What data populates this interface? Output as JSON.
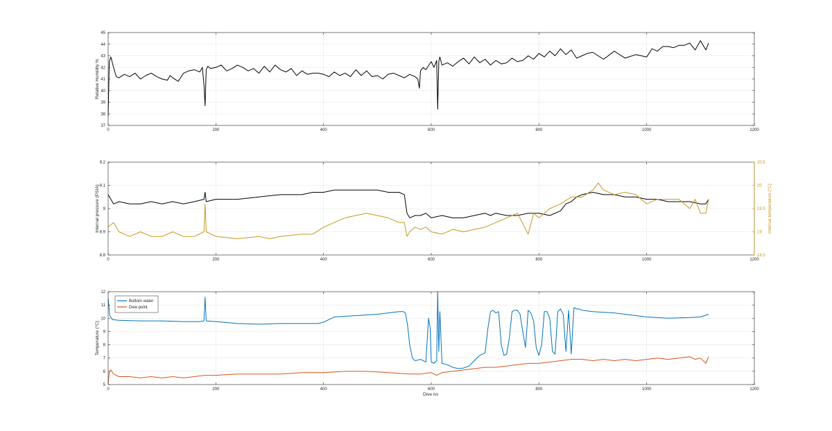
{
  "figure": {
    "xlabel": "Dive no"
  },
  "chart_data": [
    {
      "type": "line",
      "xlabel": "",
      "ylabel": "Relative Humidity %",
      "xlim": [
        0,
        1200
      ],
      "ylim": [
        37,
        45
      ],
      "xticks": [
        0,
        200,
        400,
        600,
        800,
        1000,
        1200
      ],
      "yticks": [
        37,
        38,
        39,
        40,
        41,
        42,
        43,
        44,
        45
      ],
      "grid": true,
      "series": [
        {
          "color": "#000000",
          "x": [
            0,
            2,
            5,
            10,
            15,
            20,
            30,
            40,
            50,
            60,
            70,
            80,
            90,
            100,
            110,
            115,
            120,
            130,
            140,
            150,
            160,
            170,
            175,
            178,
            180,
            182,
            185,
            190,
            200,
            210,
            220,
            230,
            240,
            250,
            260,
            270,
            280,
            290,
            300,
            310,
            320,
            330,
            340,
            350,
            360,
            370,
            380,
            390,
            400,
            410,
            420,
            430,
            440,
            450,
            460,
            470,
            480,
            490,
            500,
            510,
            520,
            530,
            540,
            550,
            560,
            570,
            575,
            578,
            580,
            585,
            590,
            600,
            605,
            610,
            612,
            614,
            616,
            620,
            630,
            640,
            650,
            660,
            670,
            680,
            690,
            700,
            710,
            720,
            730,
            740,
            750,
            760,
            770,
            780,
            790,
            800,
            810,
            820,
            830,
            840,
            850,
            860,
            870,
            880,
            890,
            900,
            920,
            940,
            960,
            980,
            1000,
            1010,
            1020,
            1030,
            1040,
            1050,
            1060,
            1070,
            1080,
            1090,
            1100,
            1110,
            1115
          ],
          "y": [
            37.8,
            42.5,
            42.9,
            42.0,
            41.2,
            41.1,
            41.4,
            41.2,
            41.5,
            41.0,
            41.3,
            41.5,
            41.2,
            41.0,
            40.9,
            41.3,
            41.1,
            40.8,
            41.5,
            41.7,
            41.8,
            41.6,
            42.0,
            40.5,
            38.7,
            41.8,
            42.1,
            41.9,
            42.0,
            42.2,
            41.7,
            41.9,
            42.2,
            42.0,
            41.7,
            41.9,
            41.5,
            42.1,
            41.6,
            42.2,
            41.8,
            41.6,
            41.9,
            41.3,
            41.7,
            41.4,
            41.5,
            41.5,
            41.4,
            41.2,
            41.6,
            41.3,
            41.5,
            41.2,
            41.8,
            41.3,
            41.7,
            41.2,
            41.3,
            41.0,
            41.4,
            41.5,
            41.3,
            41.1,
            41.4,
            41.2,
            41.0,
            40.2,
            41.7,
            42.0,
            41.8,
            42.5,
            42.0,
            42.6,
            38.4,
            42.5,
            42.9,
            42.2,
            42.4,
            42.1,
            42.5,
            42.8,
            42.3,
            42.9,
            42.4,
            42.7,
            42.2,
            42.6,
            42.3,
            42.4,
            42.8,
            42.5,
            42.6,
            43.0,
            42.7,
            43.2,
            42.9,
            43.4,
            43.0,
            43.6,
            43.1,
            43.5,
            42.8,
            43.0,
            43.2,
            43.3,
            42.7,
            43.4,
            42.8,
            43.1,
            42.9,
            43.6,
            43.4,
            43.8,
            43.8,
            43.7,
            43.9,
            43.9,
            44.1,
            43.5,
            44.3,
            43.5,
            44.1
          ]
        }
      ]
    },
    {
      "type": "line",
      "xlabel": "",
      "ylabel": "Internal pressure (PSIA)",
      "ylabel_right": "Internal temperature (°C)",
      "xlim": [
        0,
        1200
      ],
      "ylim": [
        8.8,
        9.2
      ],
      "ylim_right": [
        18.5,
        20.5
      ],
      "xticks": [
        0,
        200,
        400,
        600,
        800,
        1000,
        1200
      ],
      "yticks": [
        8.8,
        8.9,
        9,
        9.1,
        9.2
      ],
      "yticks_right": [
        18.5,
        19,
        19.5,
        20,
        20.5
      ],
      "grid": true,
      "series": [
        {
          "color": "#000000",
          "axis": "left",
          "x": [
            0,
            5,
            10,
            20,
            40,
            60,
            80,
            100,
            120,
            140,
            160,
            178,
            180,
            182,
            200,
            240,
            280,
            320,
            360,
            380,
            400,
            420,
            440,
            460,
            480,
            500,
            520,
            540,
            550,
            555,
            560,
            570,
            580,
            590,
            600,
            620,
            640,
            660,
            680,
            700,
            710,
            720,
            740,
            760,
            780,
            800,
            820,
            840,
            850,
            860,
            870,
            880,
            900,
            920,
            940,
            960,
            980,
            1000,
            1020,
            1040,
            1060,
            1080,
            1100,
            1110,
            1115
          ],
          "y": [
            9.06,
            9.04,
            9.02,
            9.03,
            9.02,
            9.02,
            9.03,
            9.02,
            9.03,
            9.02,
            9.03,
            9.04,
            9.07,
            9.03,
            9.04,
            9.04,
            9.05,
            9.06,
            9.06,
            9.07,
            9.07,
            9.08,
            9.08,
            9.08,
            9.08,
            9.08,
            9.07,
            9.07,
            9.06,
            8.98,
            8.96,
            8.97,
            8.97,
            8.98,
            8.96,
            8.97,
            8.96,
            8.96,
            8.97,
            8.98,
            8.97,
            8.98,
            8.97,
            8.97,
            8.98,
            8.98,
            8.97,
            8.99,
            9.02,
            9.03,
            9.05,
            9.06,
            9.07,
            9.06,
            9.06,
            9.05,
            9.05,
            9.04,
            9.04,
            9.03,
            9.03,
            9.03,
            9.02,
            9.02,
            9.04
          ]
        },
        {
          "color": "#c8961e",
          "axis": "right",
          "x": [
            0,
            10,
            20,
            40,
            60,
            80,
            100,
            120,
            140,
            160,
            178,
            180,
            182,
            200,
            240,
            280,
            300,
            320,
            360,
            380,
            400,
            420,
            440,
            460,
            480,
            500,
            520,
            540,
            550,
            555,
            560,
            570,
            580,
            590,
            600,
            620,
            640,
            660,
            680,
            700,
            720,
            740,
            760,
            780,
            790,
            800,
            820,
            840,
            860,
            880,
            900,
            910,
            920,
            940,
            960,
            980,
            1000,
            1020,
            1040,
            1060,
            1080,
            1090,
            1100,
            1110,
            1115
          ],
          "y": [
            19.1,
            19.2,
            19.0,
            18.9,
            19.0,
            18.9,
            18.9,
            19.0,
            18.9,
            18.9,
            19.0,
            19.6,
            19.0,
            18.9,
            18.85,
            18.9,
            18.85,
            18.9,
            18.95,
            18.95,
            19.1,
            19.2,
            19.3,
            19.35,
            19.4,
            19.35,
            19.3,
            19.2,
            19.2,
            18.9,
            19.0,
            19.1,
            19.05,
            19.1,
            19.0,
            18.95,
            19.05,
            19.0,
            19.05,
            19.1,
            19.2,
            19.3,
            19.4,
            18.95,
            19.4,
            19.3,
            19.5,
            19.6,
            19.75,
            19.75,
            19.9,
            20.05,
            19.9,
            19.8,
            19.85,
            19.8,
            19.6,
            19.7,
            19.7,
            19.7,
            19.5,
            19.7,
            19.4,
            19.4,
            19.7
          ]
        }
      ]
    },
    {
      "type": "line",
      "xlabel": "Dive no",
      "ylabel": "Temperature (°C)",
      "xlim": [
        0,
        1200
      ],
      "ylim": [
        5,
        12
      ],
      "xticks": [
        0,
        200,
        400,
        600,
        800,
        1000,
        1200
      ],
      "yticks": [
        5,
        6,
        7,
        8,
        9,
        10,
        11,
        12
      ],
      "grid": true,
      "legend": "top-left",
      "series": [
        {
          "name": "Bottom water",
          "color": "#0072bd",
          "x": [
            0,
            3,
            8,
            20,
            60,
            100,
            140,
            170,
            178,
            180,
            182,
            200,
            240,
            280,
            320,
            360,
            390,
            400,
            410,
            420,
            460,
            500,
            520,
            540,
            548,
            552,
            556,
            560,
            565,
            570,
            580,
            590,
            595,
            598,
            600,
            605,
            610,
            612,
            614,
            616,
            620,
            630,
            640,
            650,
            660,
            670,
            680,
            690,
            700,
            705,
            710,
            715,
            720,
            725,
            730,
            735,
            740,
            745,
            750,
            755,
            760,
            765,
            770,
            775,
            780,
            785,
            790,
            795,
            800,
            805,
            810,
            815,
            820,
            825,
            830,
            835,
            840,
            845,
            850,
            855,
            860,
            865,
            870,
            875,
            880,
            900,
            940,
            980,
            1000,
            1040,
            1080,
            1100,
            1115
          ],
          "y": [
            11.5,
            10.2,
            9.9,
            9.85,
            9.8,
            9.8,
            9.75,
            9.75,
            9.8,
            11.6,
            9.8,
            9.75,
            9.6,
            9.55,
            9.6,
            9.6,
            9.6,
            9.7,
            9.9,
            10.1,
            10.2,
            10.3,
            10.4,
            10.5,
            10.5,
            10.4,
            9.5,
            8.0,
            7.0,
            6.8,
            6.9,
            6.7,
            10.0,
            9.3,
            6.7,
            6.6,
            6.8,
            12.0,
            7.5,
            10.5,
            6.6,
            6.5,
            6.3,
            6.2,
            6.25,
            6.4,
            6.8,
            7.2,
            7.4,
            9.2,
            10.5,
            10.6,
            10.4,
            10.5,
            8.0,
            7.2,
            7.3,
            8.5,
            10.5,
            10.6,
            10.6,
            10.3,
            9.0,
            7.8,
            10.6,
            10.4,
            9.8,
            7.8,
            7.2,
            8.0,
            10.5,
            10.5,
            10.0,
            7.5,
            7.3,
            10.5,
            10.7,
            10.3,
            7.5,
            10.6,
            7.3,
            10.8,
            10.7,
            10.7,
            10.6,
            10.5,
            10.4,
            10.2,
            10.1,
            10.0,
            10.05,
            10.1,
            10.3
          ]
        },
        {
          "name": "Dew point",
          "color": "#d95319",
          "x": [
            0,
            2,
            5,
            10,
            20,
            40,
            60,
            80,
            100,
            120,
            140,
            160,
            180,
            200,
            240,
            280,
            320,
            360,
            400,
            440,
            480,
            520,
            560,
            580,
            600,
            610,
            620,
            640,
            660,
            680,
            700,
            720,
            740,
            760,
            780,
            800,
            820,
            840,
            860,
            880,
            900,
            920,
            940,
            960,
            980,
            1000,
            1020,
            1040,
            1060,
            1080,
            1090,
            1100,
            1110,
            1115
          ],
          "y": [
            5.1,
            5.9,
            6.1,
            5.8,
            5.6,
            5.6,
            5.5,
            5.6,
            5.5,
            5.6,
            5.5,
            5.6,
            5.7,
            5.7,
            5.8,
            5.8,
            5.8,
            5.9,
            5.9,
            6.0,
            6.0,
            5.9,
            5.8,
            5.8,
            5.9,
            5.7,
            5.9,
            6.0,
            6.1,
            6.2,
            6.3,
            6.3,
            6.4,
            6.5,
            6.6,
            6.6,
            6.7,
            6.8,
            6.9,
            6.9,
            6.8,
            6.9,
            6.8,
            6.9,
            6.8,
            6.9,
            7.0,
            6.9,
            7.0,
            7.1,
            6.9,
            7.0,
            6.6,
            7.1
          ]
        }
      ]
    }
  ]
}
